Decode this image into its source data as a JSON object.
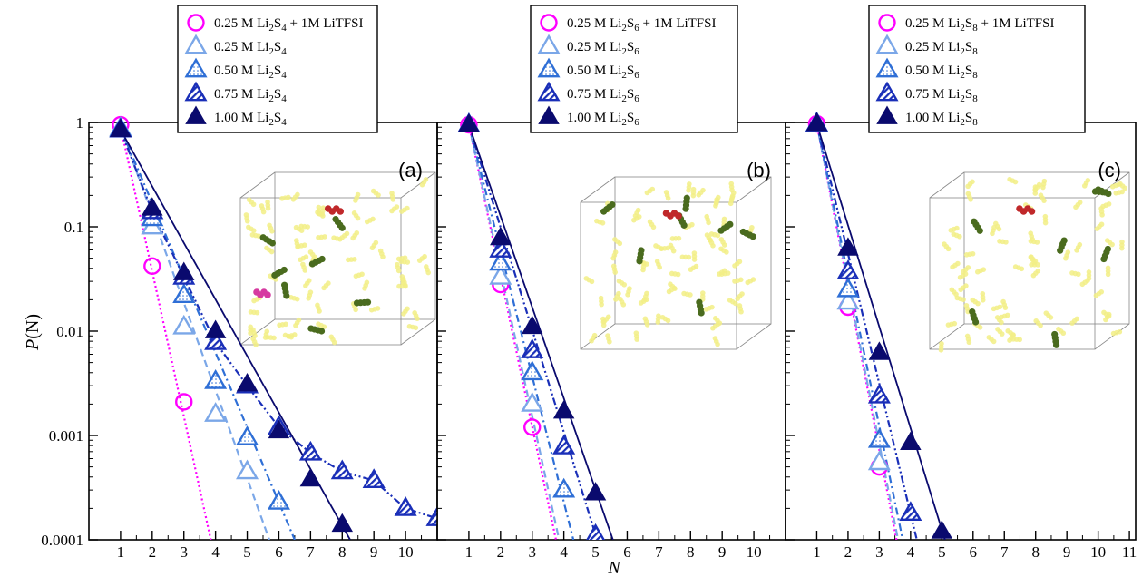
{
  "figure": {
    "ylabel_main": "P",
    "ylabel_paren": "(N)",
    "xlabel": "N"
  },
  "colors": {
    "magenta": "#ff00ff",
    "light_blue": "#7ba7e8",
    "mid_blue": "#2f6fd6",
    "blue": "#1a2fb8",
    "navy": "#0a0a6e"
  },
  "chart_data": [
    {
      "type": "scatter",
      "panel_label": "(a)",
      "x_ticks": [
        "1",
        "2",
        "3",
        "4",
        "5",
        "6",
        "7",
        "8",
        "9",
        "10"
      ],
      "xlim": [
        0,
        11
      ],
      "y_ticks": [
        "1",
        "0.1",
        "0.01",
        "0.001",
        "0.0001"
      ],
      "ylim": [
        0.0001,
        1
      ],
      "yscale": "log",
      "legend": {
        "position": "top-center",
        "entries": [
          {
            "pre": "0.25 M Li",
            "sub1": "2",
            "mid": "S",
            "sub2": "4",
            "post": " + 1M LiTFSI"
          },
          {
            "pre": "0.25 M Li",
            "sub1": "2",
            "mid": "S",
            "sub2": "4",
            "post": ""
          },
          {
            "pre": "0.50 M Li",
            "sub1": "2",
            "mid": "S",
            "sub2": "4",
            "post": ""
          },
          {
            "pre": "0.75 M Li",
            "sub1": "2",
            "mid": "S",
            "sub2": "4",
            "post": ""
          },
          {
            "pre": "1.00 M Li",
            "sub1": "2",
            "mid": "S",
            "sub2": "4",
            "post": ""
          }
        ]
      },
      "series": [
        {
          "marker": "circle",
          "color": "#ff00ff",
          "line": "dotted",
          "x": [
            1,
            2,
            3
          ],
          "y": [
            0.95,
            0.042,
            0.0021
          ],
          "fit": [
            [
              1,
              0.92
            ],
            [
              3.85,
              0.0001
            ]
          ]
        },
        {
          "marker": "triangle-open",
          "color": "#7ba7e8",
          "line": "dashed",
          "x": [
            1,
            2,
            3,
            4,
            5
          ],
          "y": [
            0.88,
            0.1,
            0.011,
            0.0016,
            0.00045
          ],
          "fit": [
            [
              1,
              0.9
            ],
            [
              5.7,
              0.0001
            ]
          ]
        },
        {
          "marker": "triangle-dotted",
          "color": "#2f6fd6",
          "line": "dashdot",
          "x": [
            1,
            2,
            3,
            4,
            5,
            6
          ],
          "y": [
            0.86,
            0.12,
            0.022,
            0.0033,
            0.00095,
            0.00023
          ],
          "fit": [
            [
              1,
              0.88
            ],
            [
              6.5,
              0.0001
            ]
          ]
        },
        {
          "marker": "triangle-hatched",
          "color": "#1a2fb8",
          "line": "dashdotdot",
          "x": [
            1,
            2,
            3,
            4,
            5,
            6,
            7,
            8,
            9,
            10,
            11
          ],
          "y": [
            0.85,
            0.14,
            0.033,
            0.0078,
            0.003,
            0.0012,
            0.00068,
            0.00045,
            0.00037,
            0.0002,
            0.00016
          ],
          "fit": [
            [
              1,
              0.85
            ],
            [
              2,
              0.14
            ],
            [
              3,
              0.033
            ],
            [
              4,
              0.0078
            ],
            [
              5,
              0.003
            ],
            [
              6,
              0.0012
            ],
            [
              7,
              0.00068
            ],
            [
              8,
              0.00045
            ],
            [
              9,
              0.00037
            ],
            [
              10,
              0.0002
            ],
            [
              11,
              0.00016
            ]
          ]
        },
        {
          "marker": "triangle-filled",
          "color": "#0a0a6e",
          "line": "solid",
          "x": [
            1,
            2,
            3,
            4,
            5,
            6,
            7,
            8
          ],
          "y": [
            0.85,
            0.15,
            0.036,
            0.01,
            0.0031,
            0.0011,
            0.00038,
            0.00014
          ],
          "fit": [
            [
              1,
              0.85
            ],
            [
              8.25,
              0.0001
            ]
          ]
        }
      ]
    },
    {
      "type": "scatter",
      "panel_label": "(b)",
      "x_ticks": [
        "1",
        "2",
        "3",
        "4",
        "5",
        "6",
        "7",
        "8",
        "9",
        "10"
      ],
      "xlim": [
        0,
        11
      ],
      "y_ticks": [
        "1",
        "0.1",
        "0.01",
        "0.001",
        "0.0001"
      ],
      "ylim": [
        0.0001,
        1
      ],
      "yscale": "log",
      "legend": {
        "position": "top-center",
        "entries": [
          {
            "pre": "0.25 M Li",
            "sub1": "2",
            "mid": "S",
            "sub2": "6",
            "post": " + 1M LiTFSI"
          },
          {
            "pre": "0.25 M Li",
            "sub1": "2",
            "mid": "S",
            "sub2": "6",
            "post": ""
          },
          {
            "pre": "0.50 M Li",
            "sub1": "2",
            "mid": "S",
            "sub2": "6",
            "post": ""
          },
          {
            "pre": "0.75 M Li",
            "sub1": "2",
            "mid": "S",
            "sub2": "6",
            "post": ""
          },
          {
            "pre": "1.00 M Li",
            "sub1": "2",
            "mid": "S",
            "sub2": "6",
            "post": ""
          }
        ]
      },
      "series": [
        {
          "marker": "circle",
          "color": "#ff00ff",
          "line": "dotted",
          "x": [
            1,
            2,
            3
          ],
          "y": [
            0.95,
            0.028,
            0.0012
          ],
          "fit": [
            [
              1,
              0.95
            ],
            [
              3.75,
              0.0001
            ]
          ]
        },
        {
          "marker": "triangle-open",
          "color": "#7ba7e8",
          "line": "dashed",
          "x": [
            1,
            2,
            3
          ],
          "y": [
            0.95,
            0.033,
            0.002
          ],
          "fit": [
            [
              1,
              0.95
            ],
            [
              3.85,
              0.0001
            ]
          ]
        },
        {
          "marker": "triangle-dotted",
          "color": "#2f6fd6",
          "line": "dashdot",
          "x": [
            1,
            2,
            3,
            4
          ],
          "y": [
            0.95,
            0.045,
            0.004,
            0.0003
          ],
          "fit": [
            [
              1,
              0.95
            ],
            [
              4.3,
              0.0001
            ]
          ]
        },
        {
          "marker": "triangle-hatched",
          "color": "#1a2fb8",
          "line": "dashdotdot",
          "x": [
            1,
            2,
            3,
            4,
            5
          ],
          "y": [
            0.95,
            0.06,
            0.0065,
            0.00078,
            0.00011
          ],
          "fit": [
            [
              1,
              0.95
            ],
            [
              5.05,
              0.0001
            ]
          ]
        },
        {
          "marker": "triangle-filled",
          "color": "#0a0a6e",
          "line": "solid",
          "x": [
            1,
            2,
            3,
            4,
            5
          ],
          "y": [
            0.95,
            0.078,
            0.011,
            0.0017,
            0.00028
          ],
          "fit": [
            [
              1,
              0.95
            ],
            [
              5.55,
              0.0001
            ]
          ]
        }
      ]
    },
    {
      "type": "scatter",
      "panel_label": "(c)",
      "x_ticks": [
        "1",
        "2",
        "3",
        "4",
        "5",
        "6",
        "7",
        "8",
        "9",
        "10",
        "11"
      ],
      "xlim": [
        0,
        11.2
      ],
      "y_ticks": [
        "1",
        "0.1",
        "0.01",
        "0.001",
        "0.0001"
      ],
      "ylim": [
        0.0001,
        1
      ],
      "yscale": "log",
      "legend": {
        "position": "top-center",
        "entries": [
          {
            "pre": "0.25 M Li",
            "sub1": "2",
            "mid": "S",
            "sub2": "8",
            "post": " + 1M LiTFSI"
          },
          {
            "pre": "0.25 M Li",
            "sub1": "2",
            "mid": "S",
            "sub2": "8",
            "post": ""
          },
          {
            "pre": "0.50 M Li",
            "sub1": "2",
            "mid": "S",
            "sub2": "8",
            "post": ""
          },
          {
            "pre": "0.75 M Li",
            "sub1": "2",
            "mid": "S",
            "sub2": "8",
            "post": ""
          },
          {
            "pre": "1.00 M Li",
            "sub1": "2",
            "mid": "S",
            "sub2": "8",
            "post": ""
          }
        ]
      },
      "series": [
        {
          "marker": "circle",
          "color": "#ff00ff",
          "line": "dotted",
          "x": [
            1,
            2,
            3
          ],
          "y": [
            0.97,
            0.017,
            0.0005
          ],
          "fit": [
            [
              1,
              0.97
            ],
            [
              3.55,
              0.0001
            ]
          ]
        },
        {
          "marker": "triangle-open",
          "color": "#7ba7e8",
          "line": "dashed",
          "x": [
            1,
            2,
            3
          ],
          "y": [
            0.97,
            0.019,
            0.00055
          ],
          "fit": [
            [
              1,
              0.97
            ],
            [
              3.6,
              0.0001
            ]
          ]
        },
        {
          "marker": "triangle-dotted",
          "color": "#2f6fd6",
          "line": "dashdot",
          "x": [
            1,
            2,
            3
          ],
          "y": [
            0.97,
            0.025,
            0.0009
          ],
          "fit": [
            [
              1,
              0.97
            ],
            [
              3.75,
              0.0001
            ]
          ]
        },
        {
          "marker": "triangle-hatched",
          "color": "#1a2fb8",
          "line": "dashdotdot",
          "x": [
            1,
            2,
            3,
            4
          ],
          "y": [
            0.97,
            0.037,
            0.0024,
            0.00018
          ],
          "fit": [
            [
              1,
              0.97
            ],
            [
              4.2,
              0.0001
            ]
          ]
        },
        {
          "marker": "triangle-filled",
          "color": "#0a0a6e",
          "line": "solid",
          "x": [
            1,
            2,
            3,
            4,
            5
          ],
          "y": [
            0.97,
            0.062,
            0.0062,
            0.00085,
            0.00012
          ],
          "fit": [
            [
              1,
              0.97
            ],
            [
              5.1,
              0.0001
            ]
          ]
        }
      ]
    }
  ]
}
